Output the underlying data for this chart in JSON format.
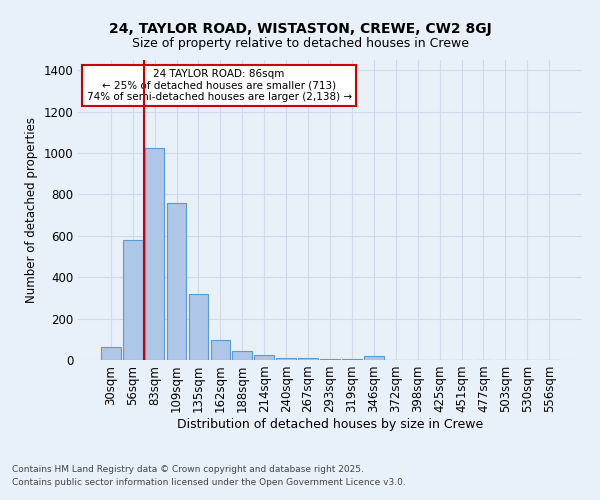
{
  "title1": "24, TAYLOR ROAD, WISTASTON, CREWE, CW2 8GJ",
  "title2": "Size of property relative to detached houses in Crewe",
  "xlabel": "Distribution of detached houses by size in Crewe",
  "ylabel": "Number of detached properties",
  "categories": [
    "30sqm",
    "56sqm",
    "83sqm",
    "109sqm",
    "135sqm",
    "162sqm",
    "188sqm",
    "214sqm",
    "240sqm",
    "267sqm",
    "293sqm",
    "319sqm",
    "346sqm",
    "372sqm",
    "398sqm",
    "425sqm",
    "451sqm",
    "477sqm",
    "503sqm",
    "530sqm",
    "556sqm"
  ],
  "values": [
    65,
    580,
    1025,
    760,
    320,
    95,
    45,
    22,
    12,
    8,
    5,
    3,
    18,
    0,
    0,
    0,
    0,
    0,
    0,
    0,
    0
  ],
  "bar_color": "#aec6e8",
  "bar_edgecolor": "#5b9bd5",
  "red_line_color": "#cc0000",
  "red_line_x": 1.5,
  "annotation_text": "24 TAYLOR ROAD: 86sqm\n← 25% of detached houses are smaller (713)\n74% of semi-detached houses are larger (2,138) →",
  "annotation_box_color": "#ffffff",
  "annotation_box_edgecolor": "#cc0000",
  "ylim": [
    0,
    1450
  ],
  "background_color": "#e8f0fa",
  "grid_color": "#d0daea",
  "footer1": "Contains HM Land Registry data © Crown copyright and database right 2025.",
  "footer2": "Contains public sector information licensed under the Open Government Licence v3.0."
}
